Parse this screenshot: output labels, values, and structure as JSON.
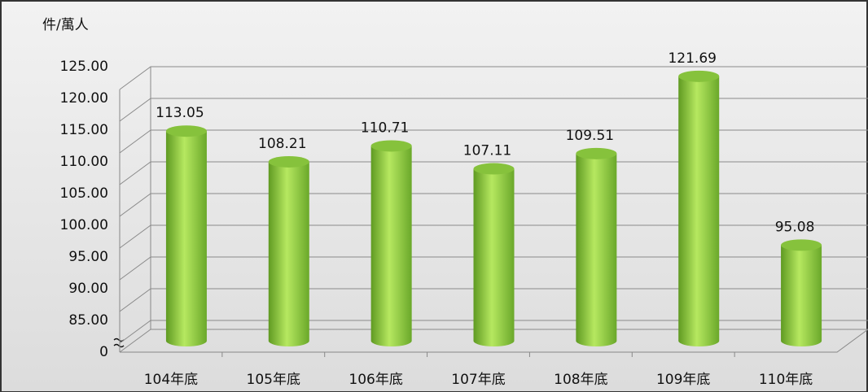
{
  "chart_data": {
    "type": "bar",
    "y_label": "件/萬人",
    "categories": [
      "104年底",
      "105年底",
      "106年底",
      "107年底",
      "108年底",
      "109年底",
      "110年底"
    ],
    "values": [
      113.05,
      108.21,
      110.71,
      107.11,
      109.51,
      121.69,
      95.08
    ],
    "color": "#92d050",
    "ylim": [
      0,
      125
    ],
    "yticks": [
      0,
      {
        "value": 85,
        "label": "85.00"
      },
      {
        "value": 90,
        "label": "90.00"
      },
      {
        "value": 95,
        "label": "95.00"
      },
      {
        "value": 100,
        "label": "100.00"
      },
      {
        "value": 105,
        "label": "105.00"
      },
      {
        "value": 110,
        "label": "110.00"
      },
      {
        "value": 115,
        "label": "115.00"
      },
      {
        "value": 120,
        "label": "120.00"
      },
      {
        "value": 125,
        "label": "125.00"
      }
    ],
    "grid": true
  }
}
